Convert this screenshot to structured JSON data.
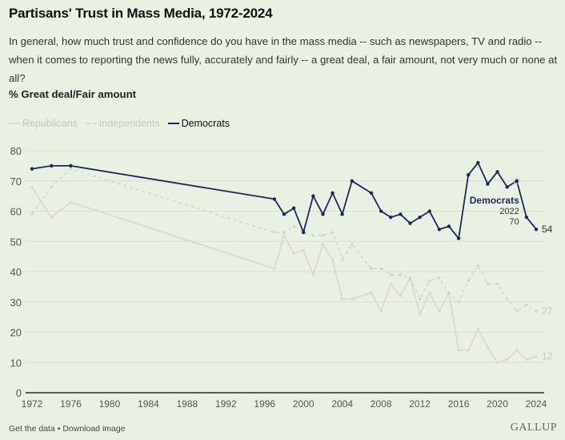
{
  "header": {
    "title": "Partisans' Trust in Mass Media, 1972-2024",
    "subtitle": "In general, how much trust and confidence do you have in the mass media -- such as newspapers, TV and radio -- when it comes to reporting the news fully, accurately and fairly -- a great deal, a fair amount, not very much or none at all?",
    "measure": "% Great deal/Fair amount"
  },
  "legend": [
    {
      "label": "Republicans",
      "style": "solid-pale"
    },
    {
      "label": "Independents",
      "style": "dashed-pale"
    },
    {
      "label": "Democrats",
      "style": "solid-navy"
    }
  ],
  "footer": {
    "get_data": "Get the data",
    "separator": "•",
    "download": "Download image",
    "brand": "GALLUP"
  },
  "colors": {
    "background": "#e8f1e2",
    "democrats": "#1b2a5c",
    "republicans": "#e2d6cf",
    "independents": "#d2dbcd",
    "grid": "#d6dfd0",
    "axis": "#2b2b2b"
  },
  "chart_data": {
    "type": "line",
    "title": "Partisans' Trust in Mass Media, 1972-2024",
    "xlabel": "",
    "ylabel": "% Great deal/Fair amount",
    "xlim": [
      1972,
      2024
    ],
    "ylim": [
      0,
      80
    ],
    "x_ticks": [
      1972,
      1976,
      1980,
      1984,
      1988,
      1992,
      1996,
      2000,
      2004,
      2008,
      2012,
      2016,
      2020,
      2024
    ],
    "y_ticks": [
      0,
      10,
      20,
      30,
      40,
      50,
      60,
      70,
      80
    ],
    "grid": true,
    "legend_position": "top-left",
    "series": [
      {
        "name": "Republicans",
        "x": [
          1972,
          1974,
          1976,
          1997,
          1998,
          1999,
          2000,
          2001,
          2002,
          2003,
          2004,
          2005,
          2007,
          2008,
          2009,
          2010,
          2011,
          2012,
          2013,
          2014,
          2015,
          2016,
          2017,
          2018,
          2019,
          2020,
          2021,
          2022,
          2023,
          2024
        ],
        "values": [
          68,
          58,
          63,
          41,
          52,
          46,
          47,
          39,
          49,
          44,
          31,
          31,
          33,
          27,
          36,
          32,
          38,
          26,
          33,
          27,
          33,
          14,
          14,
          21,
          15,
          10,
          11,
          14,
          11,
          12
        ],
        "end_label": "12"
      },
      {
        "name": "Independents",
        "x": [
          1972,
          1974,
          1976,
          1997,
          1998,
          1999,
          2000,
          2001,
          2002,
          2003,
          2004,
          2005,
          2007,
          2008,
          2009,
          2010,
          2011,
          2012,
          2013,
          2014,
          2015,
          2016,
          2017,
          2018,
          2019,
          2020,
          2021,
          2022,
          2023,
          2024
        ],
        "values": [
          59,
          68,
          74,
          53,
          53,
          55,
          53,
          52,
          52,
          53,
          44,
          49,
          41,
          41,
          39,
          39,
          38,
          31,
          37,
          38,
          33,
          30,
          37,
          42,
          36,
          36,
          31,
          27,
          29,
          27
        ],
        "end_label": "27"
      },
      {
        "name": "Democrats",
        "x": [
          1972,
          1974,
          1976,
          1997,
          1998,
          1999,
          2000,
          2001,
          2002,
          2003,
          2004,
          2005,
          2007,
          2008,
          2009,
          2010,
          2011,
          2012,
          2013,
          2014,
          2015,
          2016,
          2017,
          2018,
          2019,
          2020,
          2021,
          2022,
          2023,
          2024
        ],
        "values": [
          74,
          75,
          75,
          64,
          59,
          61,
          53,
          65,
          59,
          66,
          59,
          70,
          66,
          60,
          58,
          59,
          56,
          58,
          60,
          54,
          55,
          51,
          72,
          76,
          69,
          73,
          68,
          70,
          58,
          54
        ],
        "end_label": "54"
      }
    ],
    "annotation": {
      "series": "Democrats",
      "year": "2022",
      "value": "70"
    }
  }
}
